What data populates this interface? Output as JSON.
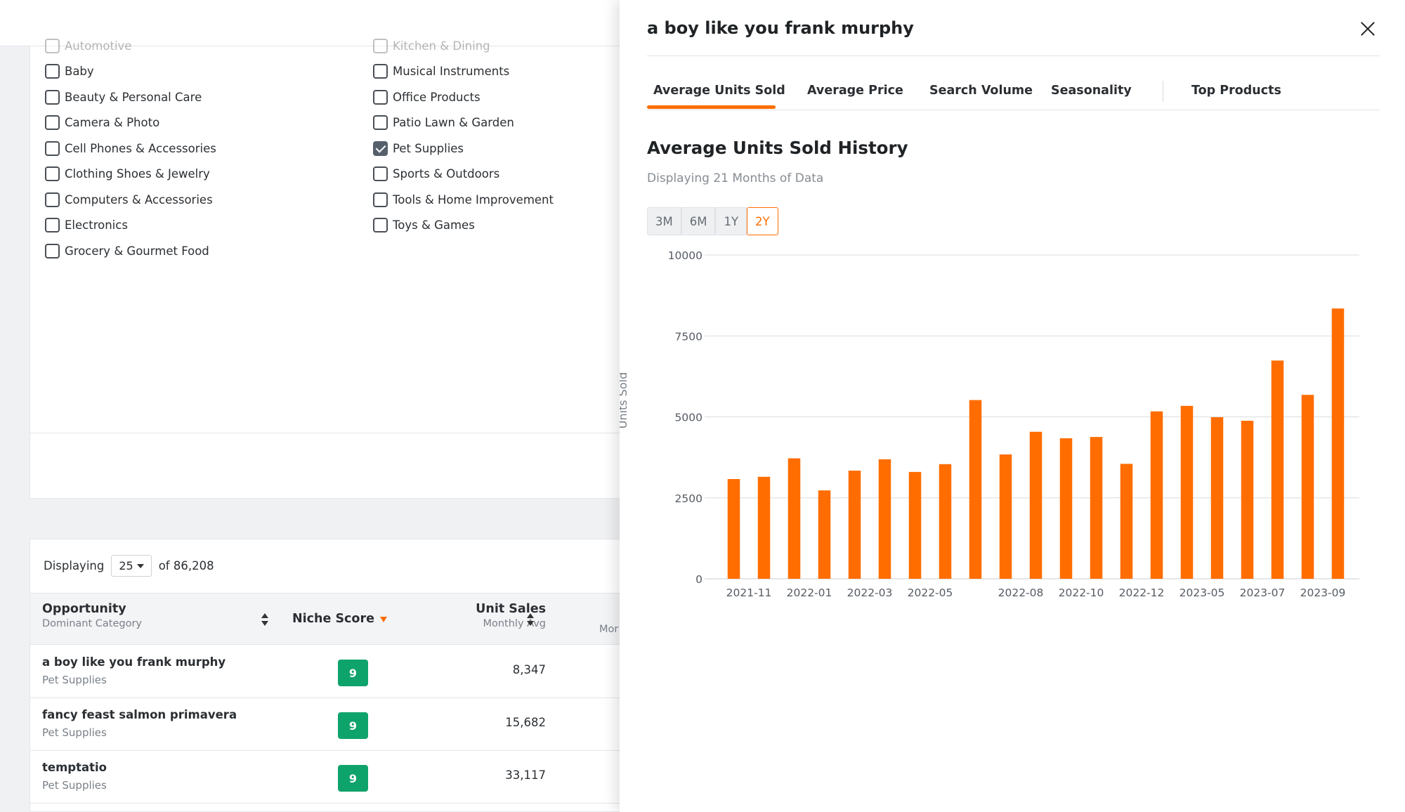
{
  "categories_left": [
    {
      "label": "Automotive",
      "checked": false
    },
    {
      "label": "Baby",
      "checked": false
    },
    {
      "label": "Beauty & Personal Care",
      "checked": false
    },
    {
      "label": "Camera & Photo",
      "checked": false
    },
    {
      "label": "Cell Phones & Accessories",
      "checked": false
    },
    {
      "label": "Clothing Shoes & Jewelry",
      "checked": false
    },
    {
      "label": "Computers & Accessories",
      "checked": false
    },
    {
      "label": "Electronics",
      "checked": false
    },
    {
      "label": "Grocery & Gourmet Food",
      "checked": false
    }
  ],
  "categories_right": [
    {
      "label": "Kitchen & Dining",
      "checked": false
    },
    {
      "label": "Musical Instruments",
      "checked": false
    },
    {
      "label": "Office Products",
      "checked": false
    },
    {
      "label": "Patio Lawn & Garden",
      "checked": false
    },
    {
      "label": "Pet Supplies",
      "checked": true
    },
    {
      "label": "Sports & Outdoors",
      "checked": false
    },
    {
      "label": "Tools & Home Improvement",
      "checked": false
    },
    {
      "label": "Toys & Games",
      "checked": false
    }
  ],
  "table": {
    "displaying_label": "Displaying",
    "page_size": "25",
    "total_label": "of 86,208",
    "columns": {
      "opportunity": "Opportunity",
      "opportunity_sub": "Dominant Category",
      "niche_score": "Niche Score",
      "unit_sales": "Unit Sales",
      "unit_sales_sub": "Monthly Avg",
      "next_col_sub_partial": "Mor"
    },
    "rows": [
      {
        "name": "a boy like you frank murphy",
        "category": "Pet Supplies",
        "score": "9",
        "unit_sales": "8,347"
      },
      {
        "name": "fancy feast salmon primavera",
        "category": "Pet Supplies",
        "score": "9",
        "unit_sales": "15,682"
      },
      {
        "name": "temptatio",
        "category": "Pet Supplies",
        "score": "9",
        "unit_sales": "33,117"
      }
    ]
  },
  "panel": {
    "title": "a boy like you frank murphy",
    "tabs": [
      "Average Units Sold",
      "Average Price",
      "Search Volume",
      "Seasonality",
      "Top Products"
    ],
    "active_tab": "Average Units Sold",
    "chart_title": "Average Units Sold History",
    "chart_subtitle": "Displaying 21 Months of Data",
    "ranges": [
      "3M",
      "6M",
      "1Y",
      "2Y"
    ],
    "active_range": "2Y",
    "accent_color": "#ff6d00"
  },
  "chart_data": {
    "type": "bar",
    "title": "Average Units Sold History",
    "ylabel": "Units Sold",
    "xlabel": "",
    "ylim": [
      0,
      10000
    ],
    "yticks": [
      0,
      2500,
      5000,
      7500,
      10000
    ],
    "x_tick_labels": [
      "2021-11",
      "2022-01",
      "2022-03",
      "2022-05",
      "2022-08",
      "2022-10",
      "2022-12",
      "2023-05",
      "2023-07",
      "2023-09"
    ],
    "x_tick_bar_index": [
      1,
      3,
      5,
      7,
      10,
      12,
      14,
      16,
      18,
      20
    ],
    "values": [
      3080,
      3150,
      3720,
      2730,
      3340,
      3690,
      3300,
      3540,
      5520,
      3840,
      4540,
      4340,
      4380,
      3550,
      5170,
      5340,
      4990,
      4880,
      6740,
      5680,
      8347
    ],
    "bar_color": "#ff6d00",
    "grid": true
  }
}
